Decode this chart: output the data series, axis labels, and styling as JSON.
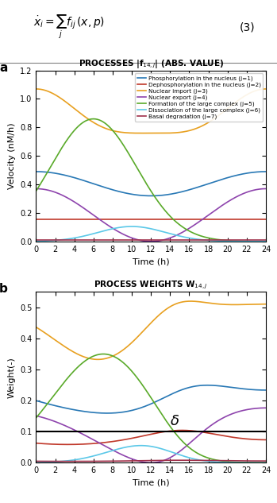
{
  "title_a": "PROCESSES |f$_{14,j}$| (ABS. VALUE)",
  "title_b": "PROCESS WEIGHTS W$_{14,j}$",
  "xlabel": "Time (h)",
  "ylabel_a": "Velocity (nM/h)",
  "ylabel_b": "Weight(-)",
  "xlim": [
    0,
    24
  ],
  "ylim_a": [
    0,
    1.2
  ],
  "ylim_b": [
    0,
    0.55
  ],
  "xticks": [
    0,
    2,
    4,
    6,
    8,
    10,
    12,
    14,
    16,
    18,
    20,
    22,
    24
  ],
  "yticks_a": [
    0,
    0.2,
    0.4,
    0.6,
    0.8,
    1.0,
    1.2
  ],
  "yticks_b": [
    0,
    0.1,
    0.2,
    0.3,
    0.4,
    0.5
  ],
  "delta_line": 0.1,
  "delta_label": "δ",
  "colors": {
    "j1": "#2878b5",
    "j2": "#c0392b",
    "j3": "#e8a020",
    "j4": "#8e44ad",
    "j5": "#5aaa2a",
    "j6": "#5bc8e8",
    "j7": "#a0304a"
  },
  "legend_labels": [
    "Phosphorylation in the nucleus (j=1)",
    "Dephosphorylation in the nucleus (j=2)",
    "Nuclear import (j=3)",
    "Nuclear export (j=4)",
    "Formation of the large complex (j=5)",
    "Dissociation of the large complex (j=6)",
    "Basal degradation (j=7)"
  ],
  "panel_a_label": "a",
  "panel_b_label": "b"
}
